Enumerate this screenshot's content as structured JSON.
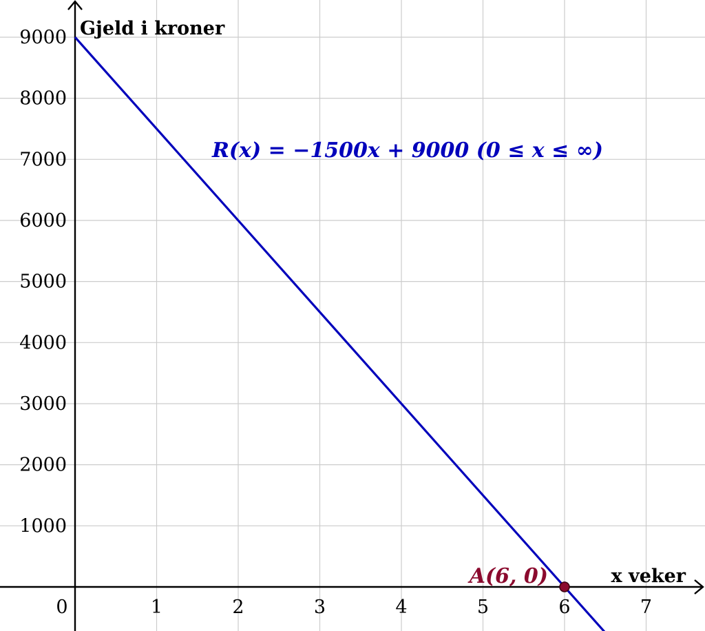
{
  "chart_data": {
    "type": "line",
    "xlabel": "x veker",
    "ylabel": "Gjeld i kroner",
    "xlim": [
      0,
      7.5
    ],
    "ylim": [
      -700,
      9500
    ],
    "x_ticks": [
      "1",
      "2",
      "3",
      "4",
      "5",
      "6",
      "7"
    ],
    "y_ticks": [
      "1000",
      "2000",
      "3000",
      "4000",
      "5000",
      "6000",
      "7000",
      "8000",
      "9000"
    ],
    "origin_label": "0",
    "grid": true,
    "series": [
      {
        "label": "R(x) = −1500x + 9000 (0 ≤ x ≤ ∞)",
        "color": "#0000bb",
        "slope": -1500,
        "intercept": 9000,
        "x": [
          0,
          6.5
        ],
        "y": [
          9000,
          -750
        ]
      }
    ],
    "points": [
      {
        "label": "A(6, 0)",
        "x": 6,
        "y": 0,
        "color": "#8b0a2e"
      }
    ]
  }
}
